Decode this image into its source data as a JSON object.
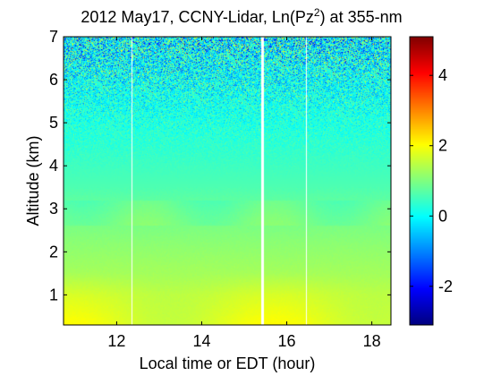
{
  "chart_data": {
    "type": "heatmap",
    "title": {
      "prefix": "2012 May17, CCNY-Lidar, Ln(Pz",
      "superscript": "2",
      "suffix": ") at 355-nm"
    },
    "xlabel": "Local time or EDT (hour)",
    "ylabel": "Altitude (km)",
    "xlim": [
      10.75,
      18.45
    ],
    "ylim": [
      0.3,
      7.0
    ],
    "x_ticks": [
      {
        "value": 12,
        "label": "12"
      },
      {
        "value": 14,
        "label": "14"
      },
      {
        "value": 16,
        "label": "16"
      },
      {
        "value": 18,
        "label": "18"
      }
    ],
    "y_ticks": [
      {
        "value": 1,
        "label": "1"
      },
      {
        "value": 2,
        "label": "2"
      },
      {
        "value": 3,
        "label": "3"
      },
      {
        "value": 4,
        "label": "4"
      },
      {
        "value": 5,
        "label": "5"
      },
      {
        "value": 6,
        "label": "6"
      },
      {
        "value": 7,
        "label": "7"
      }
    ],
    "colorbar": {
      "colormap": "jet",
      "range": [
        -3.1,
        5.1
      ],
      "ticks": [
        {
          "value": -2,
          "label": "-2"
        },
        {
          "value": 0,
          "label": "0"
        },
        {
          "value": 2,
          "label": "2"
        },
        {
          "value": 4,
          "label": "4"
        }
      ]
    },
    "data_gaps_hours": [
      12.35,
      15.4,
      16.45
    ],
    "profile": [
      {
        "altitude_km": 0.3,
        "value": 1.8
      },
      {
        "altitude_km": 1.0,
        "value": 1.6
      },
      {
        "altitude_km": 1.5,
        "value": 1.3
      },
      {
        "altitude_km": 2.2,
        "value": 1.1
      },
      {
        "altitude_km": 2.8,
        "value": 0.9
      },
      {
        "altitude_km": 3.5,
        "value": 0.6
      },
      {
        "altitude_km": 4.5,
        "value": 0.35
      },
      {
        "altitude_km": 5.5,
        "value": 0.15
      },
      {
        "altitude_km": 7.0,
        "value": -0.1
      }
    ],
    "grid": false
  }
}
